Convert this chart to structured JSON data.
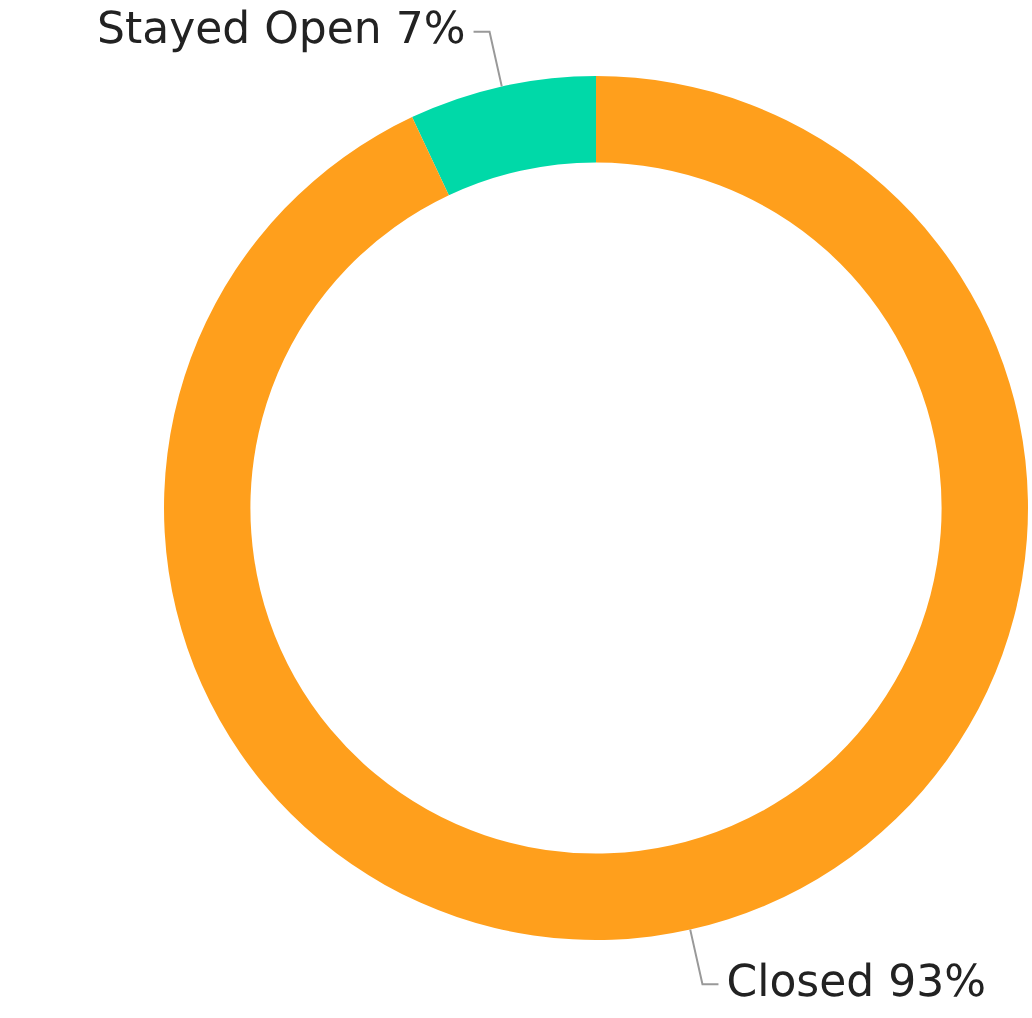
{
  "chart_data": {
    "type": "donut",
    "categories": [
      "Stayed Open",
      "Closed"
    ],
    "values": [
      7,
      93
    ],
    "value_labels": [
      "7%",
      "93%"
    ],
    "colors": [
      "#00d9a8",
      "#ff9f1c"
    ],
    "legend": false
  }
}
